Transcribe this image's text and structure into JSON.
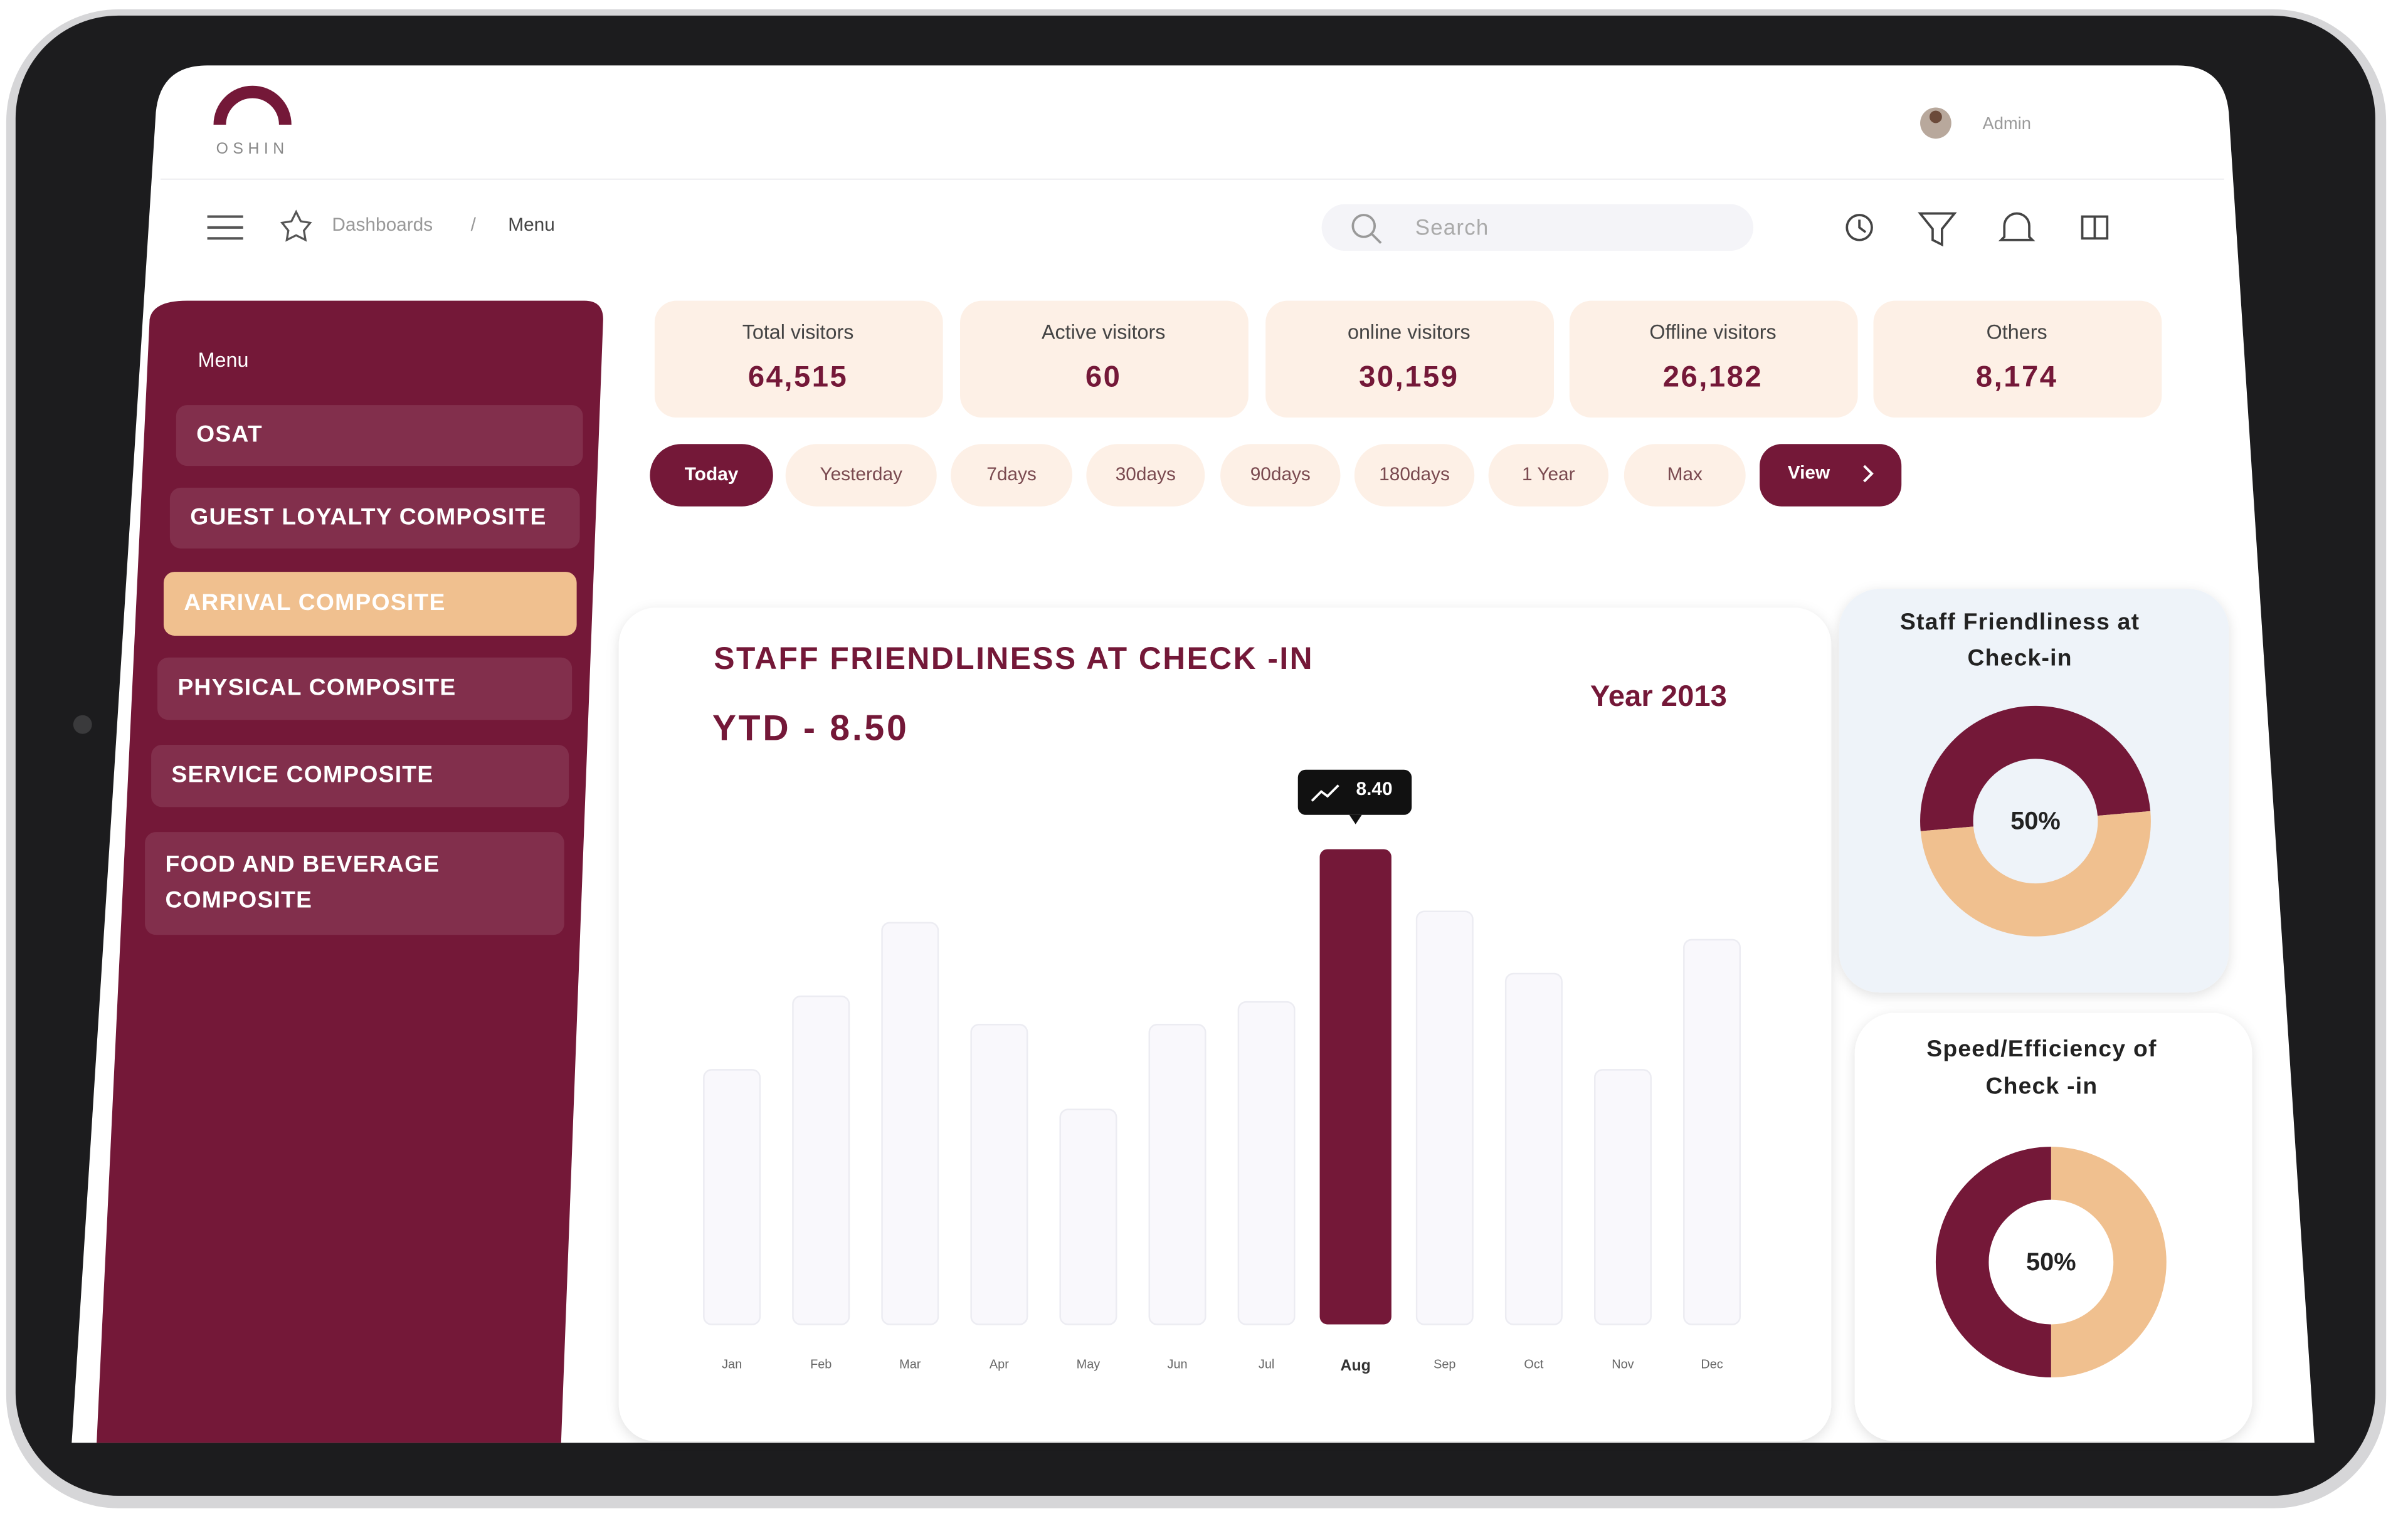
{
  "logo": "OSHIN",
  "header": {
    "user": "Admin",
    "search_placeholder": "Search"
  },
  "breadcrumb": {
    "items": [
      "Dashboards",
      "Menu"
    ],
    "separator": "/"
  },
  "sidebar": {
    "title": "Menu",
    "items": [
      "OSAT",
      "GUEST LOYALTY COMPOSITE",
      "ARRIVAL COMPOSITE",
      "PHYSICAL COMPOSITE",
      "SERVICE COMPOSITE",
      "FOOD AND BEVERAGE COMPOSITE"
    ],
    "active": "ARRIVAL COMPOSITE"
  },
  "stats": [
    {
      "label": "Total visitors",
      "value": "64,515"
    },
    {
      "label": "Active visitors",
      "value": "60"
    },
    {
      "label": "online visitors",
      "value": "30,159"
    },
    {
      "label": "Offline visitors",
      "value": "26,182"
    },
    {
      "label": "Others",
      "value": "8,174"
    }
  ],
  "filters": {
    "options": [
      "Today",
      "Yesterday",
      "7days",
      "30days",
      "90days",
      "180days",
      "1 Year",
      "Max"
    ],
    "active": "Today",
    "view_button": "View"
  },
  "chart_data": [
    {
      "type": "bar",
      "title": "STAFF FRIENDLINESS AT CHECK -IN",
      "subtitle": "YTD - 8.50",
      "annotation": "Year 2013",
      "categories": [
        "Jan",
        "Feb",
        "Mar",
        "Apr",
        "May",
        "Jun",
        "Jul",
        "Aug",
        "Sep",
        "Oct",
        "Nov",
        "Dec"
      ],
      "values": [
        4.5,
        5.8,
        7.1,
        5.3,
        3.8,
        5.3,
        5.7,
        8.4,
        7.3,
        6.2,
        4.5,
        6.8
      ],
      "value_labels": [
        null,
        null,
        null,
        null,
        null,
        null,
        null,
        "8.40",
        null,
        null,
        null,
        null
      ],
      "colors": [
        "#f9f8fc",
        "#f9f8fc",
        "#f9f8fc",
        "#f9f8fc",
        "#f9f8fc",
        "#f9f8fc",
        "#f9f8fc",
        "#741838",
        "#f9f8fc",
        "#f9f8fc",
        "#f9f8fc",
        "#f9f8fc"
      ]
    },
    {
      "type": "donut",
      "title": "Staff Friendliness at Check-in",
      "values": [
        50,
        50
      ],
      "value_labels": [
        "50%",
        null
      ],
      "colors": [
        "#741838",
        "#f0c08f"
      ]
    },
    {
      "type": "donut",
      "title": "Speed/Efficiency of Check -in",
      "values": [
        50,
        50
      ],
      "value_labels": [
        "50%",
        null
      ],
      "colors": [
        "#f0c08f",
        "#741838"
      ]
    }
  ]
}
